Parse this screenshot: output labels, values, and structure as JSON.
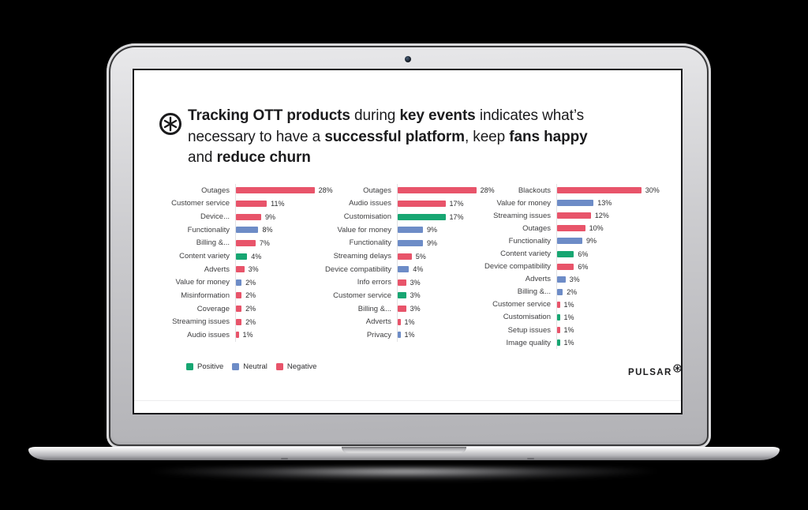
{
  "slide": {
    "title": {
      "full_text": "Tracking OTT products during key events indicates what’s necessary to have a successful platform, keep fans happy and reduce churn",
      "lines": [
        [
          {
            "text": "Tracking OTT products",
            "bold": true
          },
          {
            "text": " during ",
            "bold": false
          },
          {
            "text": "key events",
            "bold": true
          },
          {
            "text": " indicates what’s",
            "bold": false
          }
        ],
        [
          {
            "text": "necessary to have a ",
            "bold": false
          },
          {
            "text": "successful platform",
            "bold": true
          },
          {
            "text": ", keep ",
            "bold": false
          },
          {
            "text": "fans happy",
            "bold": true
          }
        ],
        [
          {
            "text": "and ",
            "bold": false
          },
          {
            "text": "reduce churn",
            "bold": true
          }
        ]
      ]
    },
    "sentiment_colors": {
      "positive": "#17a672",
      "neutral": "#6d8cc7",
      "negative": "#e8546a"
    },
    "legend": [
      {
        "label": "Positive",
        "sentiment": "positive"
      },
      {
        "label": "Neutral",
        "sentiment": "neutral"
      },
      {
        "label": "Negative",
        "sentiment": "negative"
      }
    ],
    "brand": "PULSAR"
  },
  "chart_data": [
    {
      "type": "bar",
      "orientation": "horizontal",
      "unit": "%",
      "categories": [
        "Outages",
        "Customer service",
        "Device...",
        "Functionality",
        "Billing &...",
        "Content variety",
        "Adverts",
        "Value for money",
        "Misinformation",
        "Coverage",
        "Streaming issues",
        "Audio issues"
      ],
      "values": [
        28,
        11,
        9,
        8,
        7,
        4,
        3,
        2,
        2,
        2,
        2,
        1
      ],
      "sentiments": [
        "negative",
        "negative",
        "negative",
        "neutral",
        "negative",
        "positive",
        "negative",
        "neutral",
        "negative",
        "negative",
        "negative",
        "negative"
      ]
    },
    {
      "type": "bar",
      "orientation": "horizontal",
      "unit": "%",
      "categories": [
        "Outages",
        "Audio issues",
        "Customisation",
        "Value for money",
        "Functionality",
        "Streaming delays",
        "Device compatibility",
        "Info errors",
        "Customer service",
        "Billing &...",
        "Adverts",
        "Privacy"
      ],
      "values": [
        28,
        17,
        17,
        9,
        9,
        5,
        4,
        3,
        3,
        3,
        1,
        1
      ],
      "sentiments": [
        "negative",
        "negative",
        "positive",
        "neutral",
        "neutral",
        "negative",
        "neutral",
        "negative",
        "positive",
        "negative",
        "negative",
        "neutral"
      ]
    },
    {
      "type": "bar",
      "orientation": "horizontal",
      "unit": "%",
      "categories": [
        "Blackouts",
        "Value for money",
        "Streaming issues",
        "Outages",
        "Functionality",
        "Content variety",
        "Device compatibility",
        "Adverts",
        "Billing &...",
        "Customer service",
        "Customisation",
        "Setup issues",
        "Image quality"
      ],
      "values": [
        30,
        13,
        12,
        10,
        9,
        6,
        6,
        3,
        2,
        1,
        1,
        1,
        1
      ],
      "sentiments": [
        "negative",
        "neutral",
        "negative",
        "negative",
        "neutral",
        "positive",
        "negative",
        "neutral",
        "neutral",
        "negative",
        "positive",
        "negative",
        "positive"
      ]
    }
  ]
}
